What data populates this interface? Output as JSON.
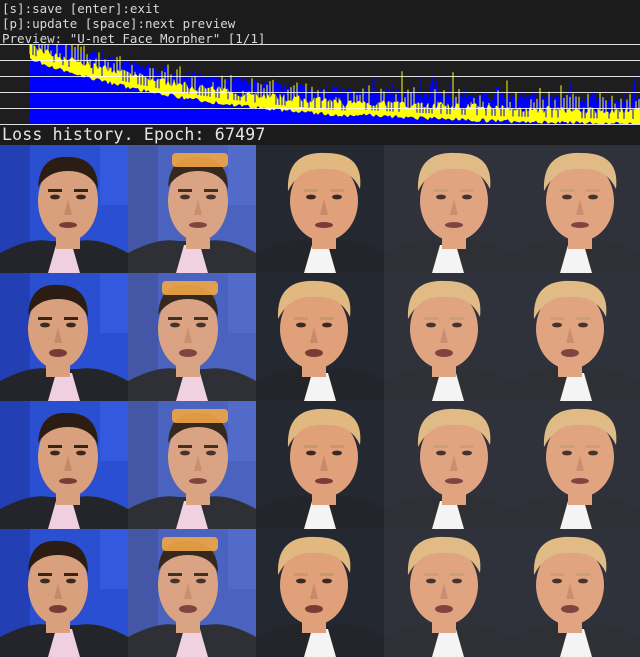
{
  "help": {
    "line1": "[s]:save [enter]:exit",
    "line2": "[p]:update [space]:next preview",
    "line3": "Preview: \"U-net Face Morpher\" [1/1]"
  },
  "loss_history": {
    "title": "Loss history. Epoch: 67497",
    "src_color": "#ffff00",
    "dst_color": "#0000ff",
    "background": "#1e1e1e",
    "grid_color": "#ffffff"
  },
  "preview": {
    "columns": [
      "src-face",
      "src-reconstructed",
      "dst-face",
      "dst-reconstructed",
      "swapped-face"
    ],
    "rows": 4,
    "identities": {
      "src": "man-with-dark-hair",
      "dst": "man-with-blond-hair"
    },
    "colors": {
      "src_background": "#2a4fd0",
      "dst_background": "#2a2f3a",
      "src_skin": "#d9a07e",
      "dst_skin": "#e0a07a",
      "src_hair": "#2b1d14",
      "dst_hair": "#e0b880",
      "headband": "#f2a23a"
    }
  }
}
